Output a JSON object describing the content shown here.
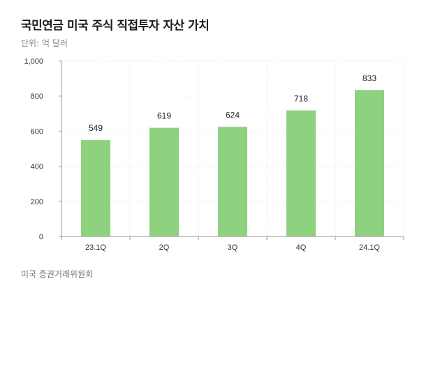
{
  "chart_data": {
    "type": "bar",
    "title": "국민연금 미국 주식 직접투자 자산 가치",
    "subtitle": "단위: 억 달러",
    "source": "미국 증권거래위원회",
    "categories": [
      "23.1Q",
      "2Q",
      "3Q",
      "4Q",
      "24.1Q"
    ],
    "values": [
      549,
      619,
      624,
      718,
      833
    ],
    "ylim": [
      0,
      1000
    ],
    "yticks": [
      0,
      200,
      400,
      600,
      800,
      1000
    ],
    "ytick_labels": [
      "0",
      "200",
      "400",
      "600",
      "800",
      "1,000"
    ],
    "grid": true,
    "bar_color": "#8ed17e",
    "grid_color": "#eeeeee",
    "axis_color": "#999999"
  }
}
